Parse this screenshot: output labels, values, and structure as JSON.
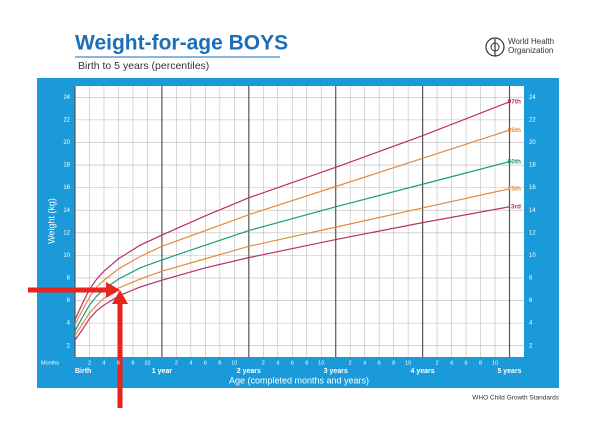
{
  "chart_data": {
    "type": "line",
    "title": "Weight-for-age BOYS",
    "subtitle": "Birth to 5 years (percentiles)",
    "organization": [
      "World Health",
      "Organization"
    ],
    "y_label": "Weight (kg)",
    "x_label": "Age (completed months and years)",
    "months_label": "Months",
    "source": "WHO Child Growth Standards",
    "x": [
      0,
      1,
      2,
      3,
      4,
      6,
      9,
      12,
      18,
      24,
      36,
      48,
      60
    ],
    "series": [
      {
        "name": "97th",
        "color": "#b8306a",
        "values": [
          4.3,
          5.7,
          7.0,
          7.9,
          8.6,
          9.7,
          10.9,
          11.8,
          13.5,
          15.1,
          17.8,
          20.6,
          23.6
        ]
      },
      {
        "name": "85th",
        "color": "#e38b3e",
        "values": [
          3.9,
          5.1,
          6.3,
          7.2,
          7.8,
          8.8,
          9.9,
          10.8,
          12.2,
          13.6,
          16.1,
          18.6,
          21.1
        ]
      },
      {
        "name": "50th",
        "color": "#1d9b7c",
        "values": [
          3.3,
          4.5,
          5.6,
          6.4,
          7.0,
          7.9,
          8.9,
          9.6,
          10.9,
          12.2,
          14.3,
          16.3,
          18.3
        ]
      },
      {
        "name": "15th",
        "color": "#e38b3e",
        "values": [
          2.9,
          3.9,
          4.9,
          5.6,
          6.2,
          7.1,
          7.9,
          8.6,
          9.7,
          10.8,
          12.5,
          14.2,
          15.9
        ]
      },
      {
        "name": "3rd",
        "color": "#b8306a",
        "values": [
          2.5,
          3.4,
          4.4,
          5.1,
          5.6,
          6.4,
          7.2,
          7.8,
          8.9,
          9.8,
          11.4,
          12.9,
          14.3
        ]
      }
    ],
    "xlim": [
      0,
      62
    ],
    "ylim": [
      1,
      25
    ],
    "yticks": [
      2,
      4,
      6,
      8,
      10,
      12,
      14,
      16,
      18,
      20,
      22,
      24
    ],
    "xticks": [
      {
        "value": 0,
        "label": "Birth"
      },
      2,
      4,
      6,
      8,
      10,
      {
        "value": 12,
        "label": "1 year"
      },
      {
        "value": 14,
        "label": "2"
      },
      {
        "value": 16,
        "label": "4"
      },
      {
        "value": 18,
        "label": "6"
      },
      {
        "value": 20,
        "label": "8"
      },
      {
        "value": 22,
        "label": "10"
      },
      {
        "value": 24,
        "label": "2 years"
      },
      {
        "value": 26,
        "label": "2"
      },
      {
        "value": 28,
        "label": "4"
      },
      {
        "value": 30,
        "label": "6"
      },
      {
        "value": 32,
        "label": "8"
      },
      {
        "value": 34,
        "label": "10"
      },
      {
        "value": 36,
        "label": "3 years"
      },
      {
        "value": 38,
        "label": "2"
      },
      {
        "value": 40,
        "label": "4"
      },
      {
        "value": 42,
        "label": "6"
      },
      {
        "value": 44,
        "label": "8"
      },
      {
        "value": 46,
        "label": "10"
      },
      {
        "value": 48,
        "label": "4 years"
      },
      {
        "value": 50,
        "label": "2"
      },
      {
        "value": 52,
        "label": "4"
      },
      {
        "value": 54,
        "label": "6"
      },
      {
        "value": 56,
        "label": "8"
      },
      {
        "value": 58,
        "label": "10"
      },
      {
        "value": 60,
        "label": "5 years"
      }
    ],
    "grid": true,
    "panel_color": "#1a9ad8",
    "title_color": "#1c6eb6"
  }
}
